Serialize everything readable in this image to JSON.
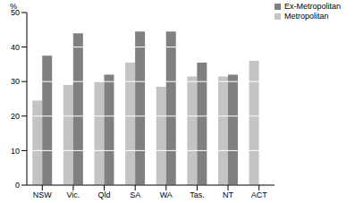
{
  "chart_data": {
    "type": "bar",
    "y_label": "%",
    "categories": [
      "NSW",
      "Vic.",
      "Qld",
      "SA",
      "WA",
      "Tas.",
      "NT",
      "ACT"
    ],
    "series": [
      {
        "name": "Metropolitan",
        "color": "#c4c4c4",
        "values": [
          24.5,
          29,
          30,
          35.5,
          28.5,
          31.5,
          31.5,
          36
        ]
      },
      {
        "name": "Ex-Metropolitan",
        "color": "#808080",
        "values": [
          37.5,
          44,
          32,
          44.5,
          44.5,
          35.5,
          32,
          null
        ]
      }
    ],
    "ylim": [
      0,
      50
    ],
    "yticks": [
      0,
      10,
      20,
      30,
      40,
      50
    ],
    "grid": true,
    "legend": "top-right"
  }
}
